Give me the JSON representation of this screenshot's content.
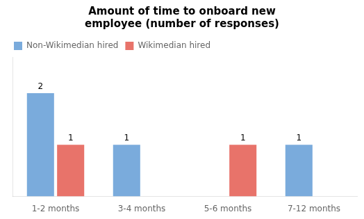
{
  "chart_data": {
    "type": "bar",
    "title": "Amount of time to onboard new\nemployee (number of responses)",
    "categories": [
      "1-2 months",
      "3-4 months",
      "5-6 months",
      "7-12 months"
    ],
    "series": [
      {
        "name": "Non-Wikimedian hired",
        "color": "#7aabdc",
        "values": [
          2,
          1,
          0,
          1
        ]
      },
      {
        "name": "Wikimedian hired",
        "color": "#e8736a",
        "values": [
          1,
          0,
          1,
          0
        ]
      }
    ],
    "ylim": [
      0,
      2.7
    ],
    "grid": false,
    "legend": "upper left",
    "data_labels": true,
    "tick_labels": "x"
  }
}
